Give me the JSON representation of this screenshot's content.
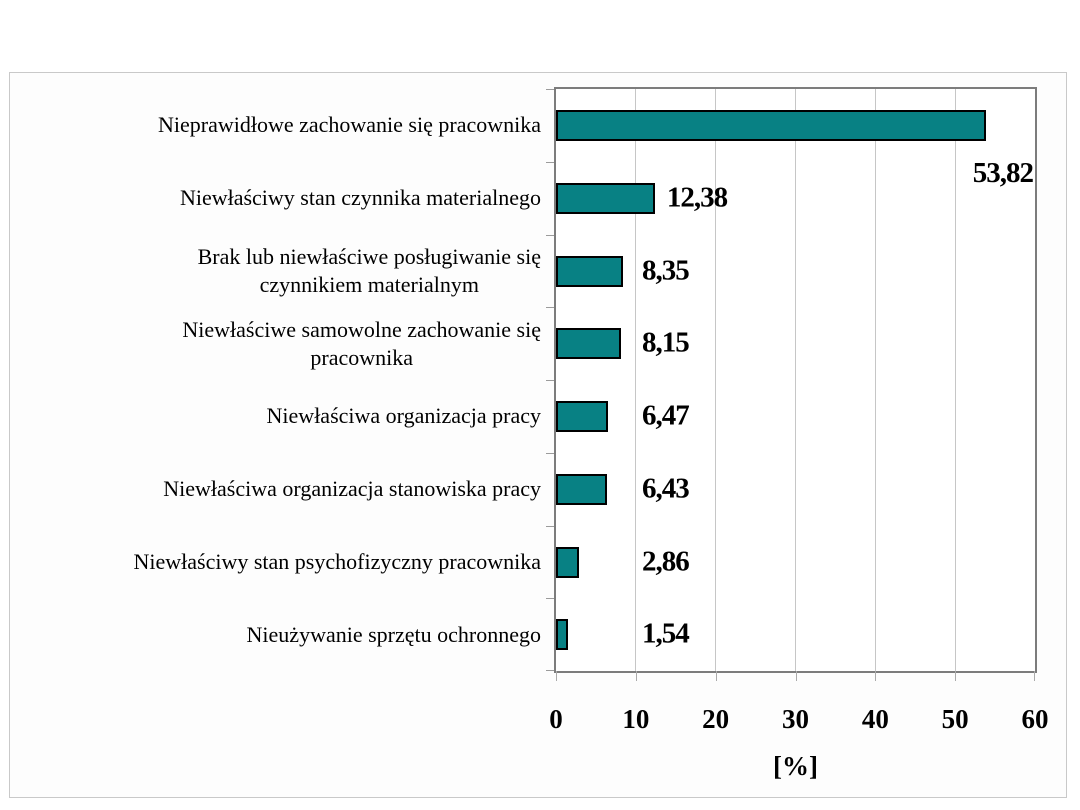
{
  "chart_data": {
    "type": "bar",
    "orientation": "horizontal",
    "title": "",
    "xlabel": "[%]",
    "ylabel": "",
    "xlim": [
      0,
      60
    ],
    "x_ticks": [
      "0",
      "10",
      "20",
      "30",
      "40",
      "50",
      "60"
    ],
    "x_tick_values": [
      0,
      10,
      20,
      30,
      40,
      50,
      60
    ],
    "grid": "vertical-major-on",
    "legend": "none",
    "categories": [
      "Nieprawidłowe zachowanie się pracownika",
      "Niewłaściwy stan czynnika materialnego",
      "Brak lub niewłaściwe posługiwanie się czynnikiem materialnym",
      "Niewłaściwe samowolne zachowanie się pracownika",
      "Niewłaściwa organizacja pracy",
      "Niewłaściwa organizacja stanowiska pracy",
      "Niewłaściwy stan psychofizyczny pracownika",
      "Nieużywanie sprzętu ochronnego"
    ],
    "category_label_lines": [
      [
        "Nieprawidłowe zachowanie się pracownika"
      ],
      [
        "Niewłaściwy stan czynnika materialnego"
      ],
      [
        "Brak lub niewłaściwe posługiwanie się",
        "czynnikiem materialnym"
      ],
      [
        "Niewłaściwe samowolne zachowanie się",
        "pracownika"
      ],
      [
        "Niewłaściwa organizacja pracy"
      ],
      [
        "Niewłaściwa organizacja stanowiska pracy"
      ],
      [
        "Niewłaściwy stan psychofizyczny pracownika"
      ],
      [
        "Nieużywanie sprzętu ochronnego"
      ]
    ],
    "values": [
      53.82,
      12.38,
      8.35,
      8.15,
      6.47,
      6.43,
      2.86,
      1.54
    ],
    "value_labels": [
      "53,82",
      "12,38",
      "8,35",
      "8,15",
      "6,47",
      "6,43",
      "2,86",
      "1,54"
    ],
    "value_label_placement": [
      "below-bar-end",
      "right-of-bar",
      "right-of-bar",
      "right-of-bar",
      "right-of-bar",
      "right-of-bar",
      "right-of-bar",
      "right-of-bar"
    ],
    "colors": {
      "bar_fill": "#088184",
      "bar_border": "#000000",
      "gridline": "#c6c6c6",
      "plot_border": "#7c7c7c",
      "frame_border": "#c9c9c9",
      "frame_background": "#fdfdfd",
      "text": "#000000"
    }
  }
}
